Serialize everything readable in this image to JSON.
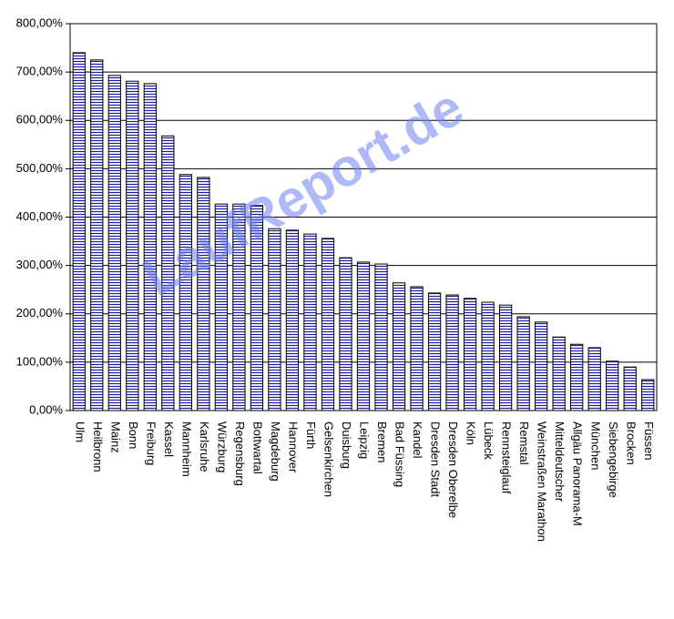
{
  "chart_data": {
    "type": "bar",
    "watermark": "LaufReport.de",
    "categories": [
      "Ulm",
      "Heilbronn",
      "Mainz",
      "Bonn",
      "Freiburg",
      "Kassel",
      "Mannheim",
      "Karlsruhe",
      "Würzburg",
      "Regensburg",
      "Bottwartal",
      "Magdeburg",
      "Hannover",
      "Fürth",
      "Gelsenkirchen",
      "Duisburg",
      "Leipzig",
      "Bremen",
      "Bad Füssing",
      "Kandel",
      "Dresden Stadt",
      "Dresden Oberelbe",
      "Köln",
      "Lübeck",
      "Rennsteiglauf",
      "Remstal",
      "Weinstraßen Marathon",
      "Mitteldeutscher",
      "Allgäu Panorama-M",
      "München",
      "Siebengebirge",
      "Brocken",
      "Füssen"
    ],
    "values": [
      740,
      725,
      693,
      681,
      676,
      568,
      488,
      482,
      427,
      427,
      424,
      376,
      373,
      365,
      356,
      316,
      307,
      303,
      264,
      256,
      243,
      239,
      232,
      224,
      218,
      194,
      183,
      152,
      137,
      130,
      102,
      90,
      64
    ],
    "color": "#1a1aa0",
    "ylim": [
      0,
      800
    ],
    "yticks": [
      {
        "value": 0,
        "label": "0,00%"
      },
      {
        "value": 100,
        "label": "100,00%"
      },
      {
        "value": 200,
        "label": "200,00%"
      },
      {
        "value": 300,
        "label": "300,00%"
      },
      {
        "value": 400,
        "label": "400,00%"
      },
      {
        "value": 500,
        "label": "500,00%"
      },
      {
        "value": 600,
        "label": "600,00%"
      },
      {
        "value": 700,
        "label": "700,00%"
      },
      {
        "value": 800,
        "label": "800,00%"
      }
    ],
    "grid": true
  }
}
